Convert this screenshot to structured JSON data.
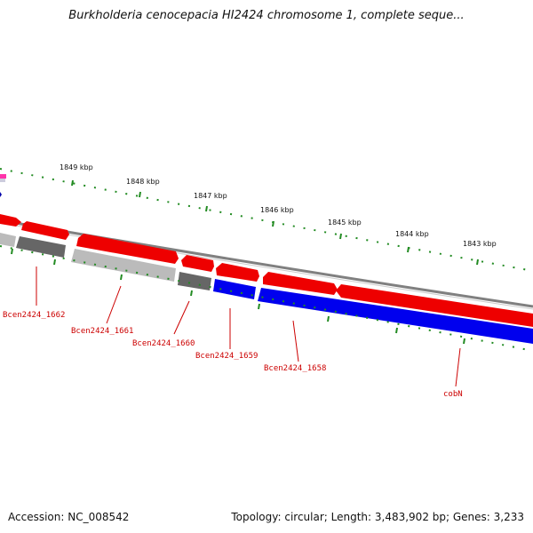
{
  "title": "Burkholderia cenocepacia HI2424 chromosome 1, complete seque...",
  "footer": {
    "accession": "Accession: NC_008542",
    "stats": "Topology: circular; Length: 3,483,902 bp; Genes: 3,233"
  },
  "colors": {
    "forward_gene": "#ee0000",
    "reverse_gene": "#0000ee",
    "pseudo_gene_dark": "#666666",
    "pseudo_gene_light": "#bbbbbb",
    "backbone": "#808080",
    "tick": "#228b22",
    "label": "#cc0000",
    "rna_magenta": "#ff33aa"
  },
  "scale": {
    "unit": "kbp",
    "labels": [
      "1849 kbp",
      "1848 kbp",
      "1847 kbp",
      "1846 kbp",
      "1845 kbp",
      "1844 kbp",
      "1843 kbp"
    ]
  },
  "genes": [
    {
      "name": "Bcen2424_1662"
    },
    {
      "name": "Bcen2424_1661"
    },
    {
      "name": "Bcen2424_1660"
    },
    {
      "name": "Bcen2424_1659"
    },
    {
      "name": "Bcen2424_1658"
    },
    {
      "name": "cobN"
    }
  ]
}
